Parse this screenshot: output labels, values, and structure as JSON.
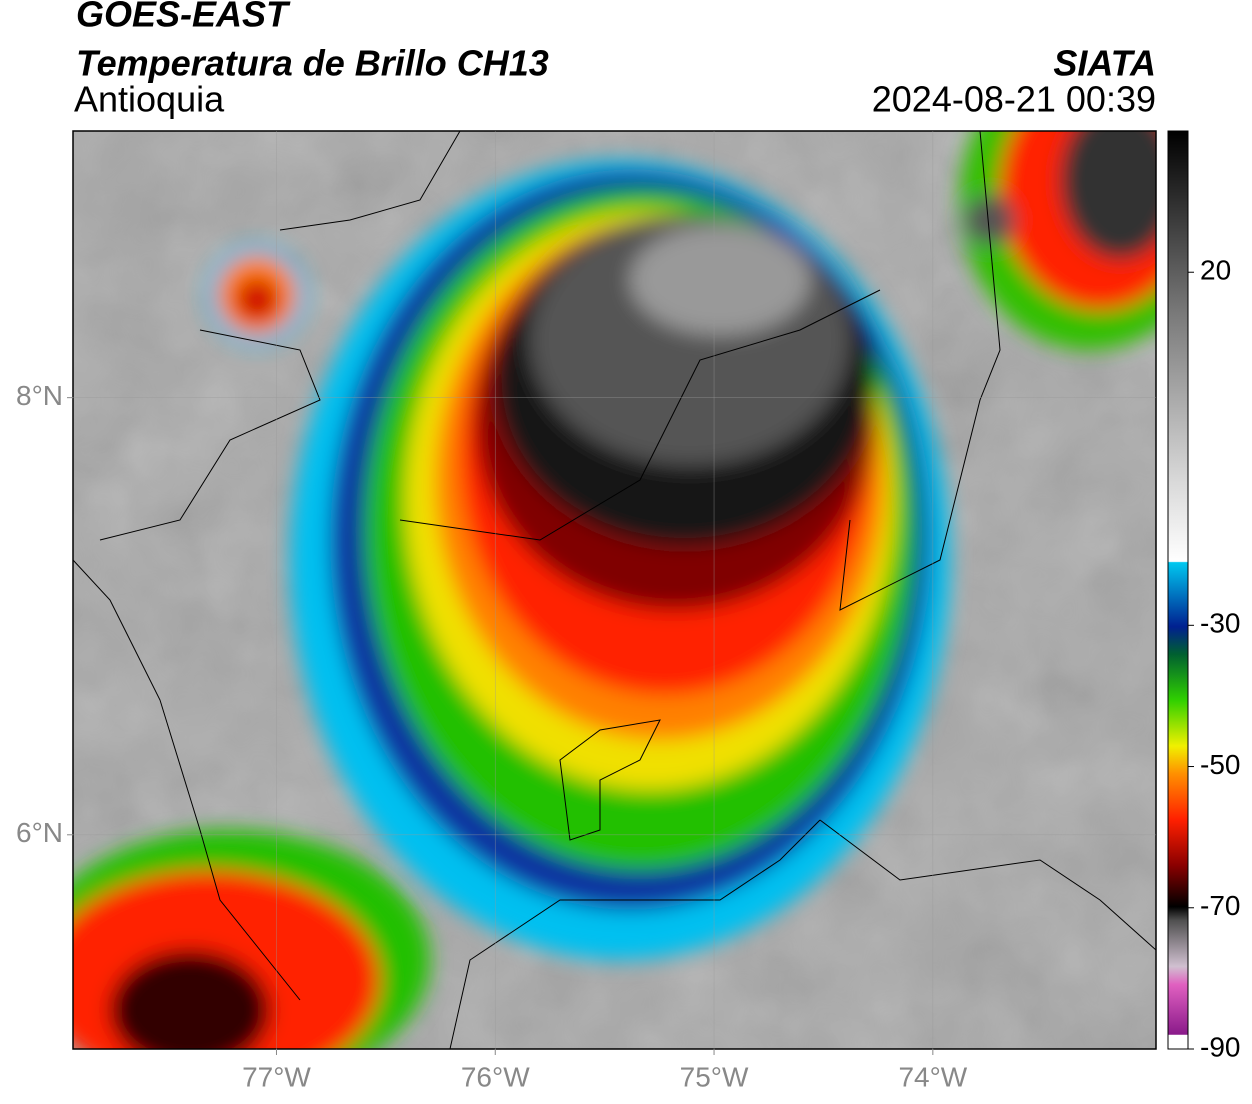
{
  "title": "GOES-EAST",
  "subtitle": "Temperatura de Brillo CH13",
  "region": "Antioquia",
  "source": "SIATA",
  "datetime": "2024-08-21 00:39",
  "map": {
    "xlim": [
      -77.93,
      -72.98
    ],
    "ylim": [
      5.02,
      9.22
    ],
    "xticks": [
      {
        "value": -77,
        "label": "77°W"
      },
      {
        "value": -76,
        "label": "76°W"
      },
      {
        "value": -75,
        "label": "75°W"
      },
      {
        "value": -74,
        "label": "74°W"
      }
    ],
    "yticks": [
      {
        "value": 6,
        "label": "6°N"
      },
      {
        "value": 8,
        "label": "8°N"
      }
    ]
  },
  "colorbar": {
    "lim": [
      -90,
      40
    ],
    "ticks": [
      20,
      -30,
      -50,
      -70,
      -90
    ]
  }
}
